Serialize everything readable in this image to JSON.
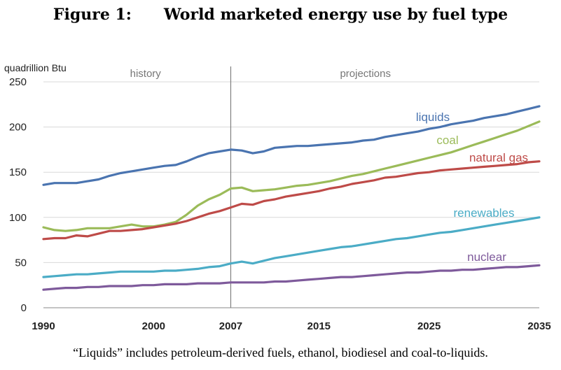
{
  "figure": {
    "title_number": "Figure 1:",
    "title_text": "World marketed energy use by fuel type",
    "caption": "“Liquids” includes petroleum-derived fuels, ethanol, biodiesel and coal-to-liquids."
  },
  "chart_data": {
    "type": "line",
    "ylabel": "quadrillion Btu",
    "xlabel": "",
    "xlim": [
      1990,
      2035
    ],
    "ylim": [
      0,
      250
    ],
    "yticks": [
      0,
      50,
      100,
      150,
      200,
      250
    ],
    "xticks": [
      1990,
      2000,
      2007,
      2015,
      2025,
      2035
    ],
    "divider_year": 2007,
    "region_labels": [
      "history",
      "projections"
    ],
    "grid": true,
    "legend": "inline labels at line ends",
    "x": [
      1990,
      1991,
      1992,
      1993,
      1994,
      1995,
      1996,
      1997,
      1998,
      1999,
      2000,
      2001,
      2002,
      2003,
      2004,
      2005,
      2006,
      2007,
      2008,
      2009,
      2010,
      2011,
      2012,
      2013,
      2014,
      2015,
      2016,
      2017,
      2018,
      2019,
      2020,
      2021,
      2022,
      2023,
      2024,
      2025,
      2026,
      2027,
      2028,
      2029,
      2030,
      2031,
      2032,
      2033,
      2034,
      2035
    ],
    "series": [
      {
        "name": "liquids",
        "color": "#4A74B0",
        "values": [
          136,
          138,
          138,
          138,
          140,
          142,
          146,
          149,
          151,
          153,
          155,
          157,
          158,
          162,
          167,
          171,
          173,
          175,
          174,
          171,
          173,
          177,
          178,
          179,
          179,
          180,
          181,
          182,
          183,
          185,
          186,
          189,
          191,
          193,
          195,
          198,
          200,
          203,
          205,
          207,
          210,
          212,
          214,
          217,
          220,
          223
        ]
      },
      {
        "name": "coal",
        "color": "#9BBB59",
        "values": [
          89,
          86,
          85,
          86,
          88,
          88,
          88,
          90,
          92,
          90,
          90,
          92,
          95,
          103,
          113,
          120,
          125,
          132,
          133,
          129,
          130,
          131,
          133,
          135,
          136,
          138,
          140,
          143,
          146,
          148,
          151,
          154,
          157,
          160,
          163,
          166,
          169,
          172,
          176,
          180,
          184,
          188,
          192,
          196,
          201,
          206
        ]
      },
      {
        "name": "natural gas",
        "color": "#BE4B48",
        "values": [
          76,
          77,
          77,
          80,
          79,
          82,
          85,
          85,
          86,
          87,
          89,
          91,
          93,
          96,
          100,
          104,
          107,
          111,
          115,
          114,
          118,
          120,
          123,
          125,
          127,
          129,
          132,
          134,
          137,
          139,
          141,
          144,
          145,
          147,
          149,
          150,
          152,
          153,
          154,
          155,
          156,
          157,
          158,
          159,
          161,
          162
        ]
      },
      {
        "name": "renewables",
        "color": "#4BACC6",
        "values": [
          34,
          35,
          36,
          37,
          37,
          38,
          39,
          40,
          40,
          40,
          40,
          41,
          41,
          42,
          43,
          45,
          46,
          49,
          51,
          49,
          52,
          55,
          57,
          59,
          61,
          63,
          65,
          67,
          68,
          70,
          72,
          74,
          76,
          77,
          79,
          81,
          83,
          84,
          86,
          88,
          90,
          92,
          94,
          96,
          98,
          100
        ]
      },
      {
        "name": "nuclear",
        "color": "#7E5A9B",
        "values": [
          20,
          21,
          22,
          22,
          23,
          23,
          24,
          24,
          24,
          25,
          25,
          26,
          26,
          26,
          27,
          27,
          27,
          28,
          28,
          28,
          28,
          29,
          29,
          30,
          31,
          32,
          33,
          34,
          34,
          35,
          36,
          37,
          38,
          39,
          39,
          40,
          41,
          41,
          42,
          42,
          43,
          44,
          45,
          45,
          46,
          47
        ]
      }
    ]
  }
}
